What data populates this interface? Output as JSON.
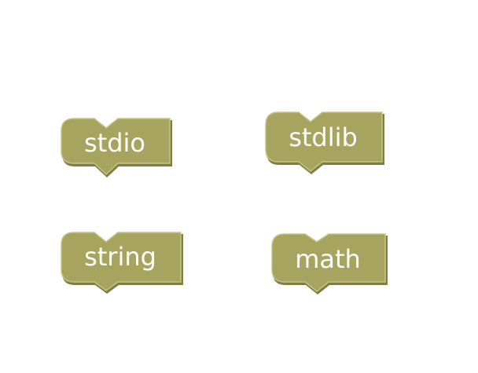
{
  "workspace": {
    "blocks": [
      {
        "id": "stdio",
        "label": "stdio"
      },
      {
        "id": "stdlib",
        "label": "stdlib"
      },
      {
        "id": "string",
        "label": "string"
      },
      {
        "id": "math",
        "label": "math"
      }
    ]
  },
  "colors": {
    "block_fill": "#a6a45f",
    "block_highlight": "#c5c384",
    "block_shadow": "#7f7d45",
    "background": "#ffffff"
  }
}
